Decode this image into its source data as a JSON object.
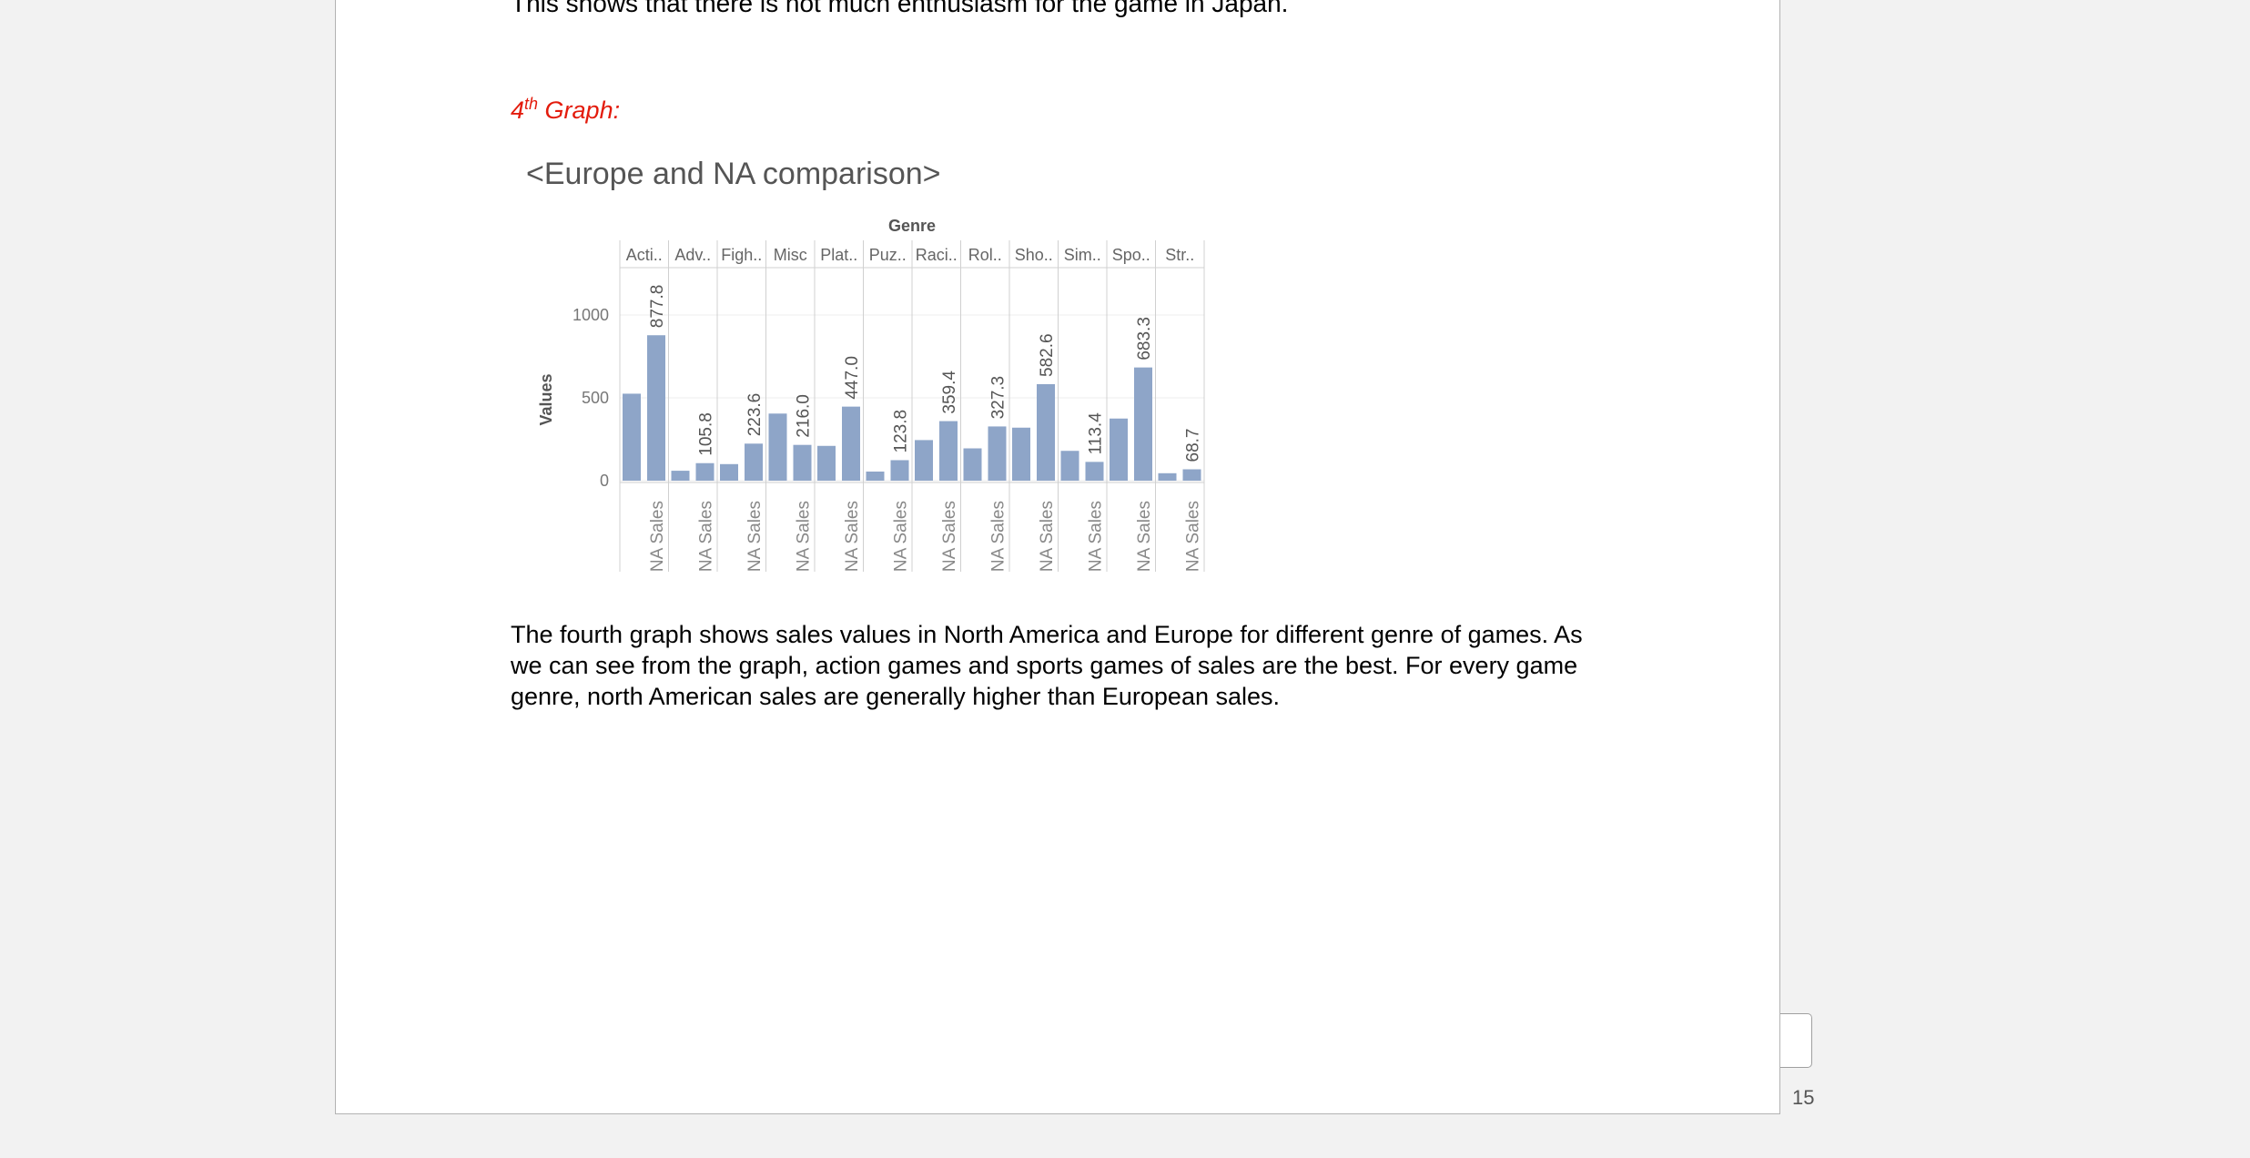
{
  "document": {
    "previous_line": "This shows that there is not much enthusiasm for the game in Japan.",
    "graph_heading": {
      "number": "4",
      "superscript": "th",
      "rest": " Graph:"
    },
    "paragraph": "The fourth graph shows sales values in North America and Europe for different genre of games. As we can see from the graph, action games and sports games of sales are the best. For every game genre, north American sales are generally higher than European sales.",
    "page_number": "15"
  },
  "chart_data": {
    "type": "bar",
    "title": "<Europe and NA comparison>",
    "column_header": "Genre",
    "ylabel": "Values",
    "ylim": [
      0,
      1100
    ],
    "yticks": [
      0,
      500,
      1000
    ],
    "grid": true,
    "color": "#8ea5c8",
    "genres": [
      "Acti..",
      "Adv..",
      "Figh..",
      "Misc",
      "Plat..",
      "Puz..",
      "Raci..",
      "Rol..",
      "Sho..",
      "Sim..",
      "Spo..",
      "Str.."
    ],
    "bottom_label": "NA Sales",
    "series": [
      {
        "values": [
          525,
          60,
          100,
          405,
          210,
          55,
          245,
          195,
          320,
          180,
          375,
          45
        ],
        "labels_shown": false
      },
      {
        "values": [
          877.8,
          105.8,
          223.6,
          216.0,
          447.0,
          123.8,
          359.4,
          327.3,
          582.6,
          113.4,
          683.3,
          68.7
        ],
        "labels_shown": true
      }
    ]
  }
}
